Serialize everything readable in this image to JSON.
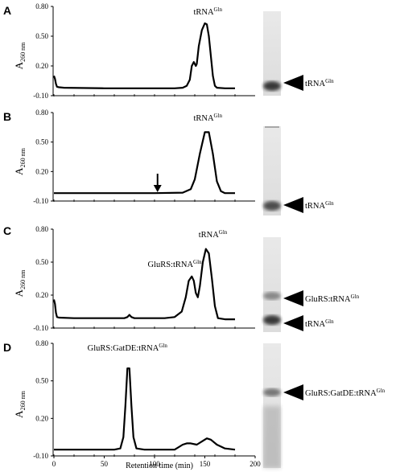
{
  "chart_data": [
    {
      "panel": "A",
      "type": "line",
      "ylabel": "A260 nm",
      "yticks": [
        "0.80",
        "0.50",
        "0.20",
        "-0.10"
      ],
      "ylim": [
        -0.1,
        0.8
      ],
      "xlim": [
        0,
        200
      ],
      "annotations": [
        {
          "text": "tRNA",
          "sup": "Gln",
          "x": 153
        }
      ],
      "gel_labels": [
        {
          "text": "tRNA",
          "sup": "Gln"
        }
      ],
      "series": [
        {
          "points": [
            [
              0,
              0.1
            ],
            [
              1,
              0.07
            ],
            [
              2,
              0.02
            ],
            [
              3,
              -0.01
            ],
            [
              5,
              -0.015
            ],
            [
              10,
              -0.02
            ],
            [
              50,
              -0.025
            ],
            [
              100,
              -0.025
            ],
            [
              120,
              -0.025
            ],
            [
              128,
              -0.02
            ],
            [
              132,
              0.0
            ],
            [
              135,
              0.06
            ],
            [
              137,
              0.2
            ],
            [
              139,
              0.24
            ],
            [
              141,
              0.2
            ],
            [
              142,
              0.22
            ],
            [
              144,
              0.4
            ],
            [
              147,
              0.56
            ],
            [
              150,
              0.63
            ],
            [
              152,
              0.62
            ],
            [
              154,
              0.5
            ],
            [
              156,
              0.3
            ],
            [
              158,
              0.1
            ],
            [
              160,
              0.0
            ],
            [
              162,
              -0.02
            ],
            [
              170,
              -0.025
            ],
            [
              180,
              -0.025
            ]
          ]
        }
      ]
    },
    {
      "panel": "B",
      "type": "line",
      "ylabel": "A260 nm",
      "yticks": [
        "0.80",
        "0.50",
        "0.20",
        "-0.10"
      ],
      "ylim": [
        -0.1,
        0.8
      ],
      "xlim": [
        0,
        200
      ],
      "annotations": [
        {
          "text": "tRNA",
          "sup": "Gln",
          "x": 153
        }
      ],
      "arrow_x": 103,
      "gel_labels": [
        {
          "text": "tRNA",
          "sup": "Gln"
        }
      ],
      "series": [
        {
          "points": [
            [
              0,
              -0.02
            ],
            [
              20,
              -0.02
            ],
            [
              60,
              -0.02
            ],
            [
              100,
              -0.02
            ],
            [
              128,
              -0.015
            ],
            [
              136,
              0.02
            ],
            [
              140,
              0.12
            ],
            [
              145,
              0.38
            ],
            [
              150,
              0.6
            ],
            [
              154,
              0.6
            ],
            [
              158,
              0.38
            ],
            [
              162,
              0.1
            ],
            [
              166,
              0.0
            ],
            [
              170,
              -0.02
            ],
            [
              180,
              -0.02
            ]
          ]
        }
      ]
    },
    {
      "panel": "C",
      "type": "line",
      "ylabel": "A260 nm",
      "yticks": [
        "0.80",
        "0.50",
        "0.20",
        "-0.10"
      ],
      "ylim": [
        -0.1,
        0.8
      ],
      "xlim": [
        0,
        200
      ],
      "annotations": [
        {
          "text": "GluRS:tRNA",
          "sup": "Gln",
          "x": 120
        },
        {
          "text": "tRNA",
          "sup": "Gln",
          "x": 158
        }
      ],
      "gel_labels": [
        {
          "text": "GluRS:tRNA",
          "sup": "Gln"
        },
        {
          "text": "tRNA",
          "sup": "Gln"
        }
      ],
      "series": [
        {
          "points": [
            [
              0,
              0.16
            ],
            [
              1,
              0.12
            ],
            [
              2,
              0.04
            ],
            [
              3,
              0.0
            ],
            [
              5,
              -0.005
            ],
            [
              20,
              -0.01
            ],
            [
              70,
              -0.01
            ],
            [
              73,
              0.0
            ],
            [
              75,
              0.02
            ],
            [
              77,
              0.0
            ],
            [
              80,
              -0.01
            ],
            [
              110,
              -0.01
            ],
            [
              120,
              0.0
            ],
            [
              127,
              0.05
            ],
            [
              131,
              0.18
            ],
            [
              134,
              0.33
            ],
            [
              137,
              0.37
            ],
            [
              139,
              0.33
            ],
            [
              141,
              0.22
            ],
            [
              143,
              0.18
            ],
            [
              145,
              0.28
            ],
            [
              148,
              0.5
            ],
            [
              151,
              0.62
            ],
            [
              154,
              0.58
            ],
            [
              157,
              0.35
            ],
            [
              160,
              0.1
            ],
            [
              163,
              -0.01
            ],
            [
              170,
              -0.02
            ],
            [
              180,
              -0.02
            ]
          ]
        }
      ]
    },
    {
      "panel": "D",
      "type": "line",
      "ylabel": "A260 nm",
      "yticks": [
        "0.80",
        "0.50",
        "0.20",
        "-0.10"
      ],
      "ylim": [
        -0.1,
        0.8
      ],
      "xlim": [
        0,
        200
      ],
      "xticks": [
        "0",
        "50",
        "100",
        "150",
        "200"
      ],
      "xlabel": "Retention time (min)",
      "annotations": [
        {
          "text": "GluRS:GatDE:tRNA",
          "sup": "Gln",
          "x": 73
        }
      ],
      "gel_labels": [
        {
          "text": "GluRS:GatDE:tRNA",
          "sup": "Gln"
        }
      ],
      "series": [
        {
          "points": [
            [
              0,
              -0.05
            ],
            [
              30,
              -0.05
            ],
            [
              60,
              -0.05
            ],
            [
              66,
              -0.04
            ],
            [
              69,
              0.05
            ],
            [
              71,
              0.3
            ],
            [
              73,
              0.6
            ],
            [
              75,
              0.6
            ],
            [
              77,
              0.3
            ],
            [
              79,
              0.05
            ],
            [
              82,
              -0.04
            ],
            [
              90,
              -0.05
            ],
            [
              120,
              -0.05
            ],
            [
              128,
              -0.01
            ],
            [
              132,
              0.0
            ],
            [
              136,
              0.0
            ],
            [
              142,
              -0.01
            ],
            [
              148,
              0.02
            ],
            [
              152,
              0.04
            ],
            [
              156,
              0.03
            ],
            [
              162,
              -0.01
            ],
            [
              170,
              -0.04
            ],
            [
              180,
              -0.05
            ]
          ]
        }
      ]
    }
  ]
}
